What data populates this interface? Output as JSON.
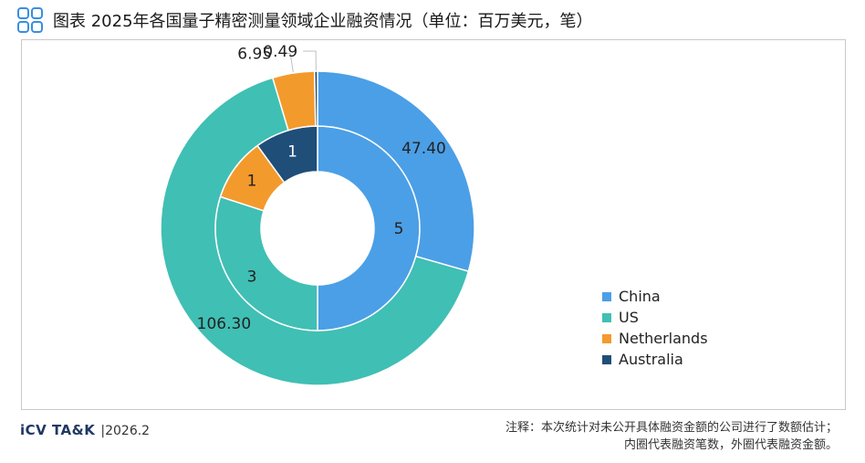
{
  "header": {
    "title": "图表 2025年各国量子精密测量领域企业融资情况（单位：百万美元，笔）"
  },
  "footer": {
    "brand": "iCV TA&K",
    "date": "|2026.2",
    "note_line1": "注释：本次统计对未公开具体融资金额的公司进行了数额估计；",
    "note_line2": "内圈代表融资笔数，外圈代表融资金额。"
  },
  "chart_data": {
    "type": "pie",
    "categories": [
      "China",
      "US",
      "Netherlands",
      "Australia"
    ],
    "colors": [
      "#4b9fe6",
      "#40bfb4",
      "#f39a2d",
      "#1f4e79"
    ],
    "legend_position": "right",
    "series": [
      {
        "name": "内圈代表融资笔数",
        "values": [
          5,
          3,
          1,
          1
        ],
        "labels": [
          "5",
          "3",
          "1",
          "1"
        ]
      },
      {
        "name": "外圈代表融资金额",
        "values": [
          47.4,
          106.3,
          6.95,
          0.49
        ],
        "labels": [
          "47.40",
          "106.30",
          "6.95",
          "0.49"
        ]
      }
    ]
  }
}
